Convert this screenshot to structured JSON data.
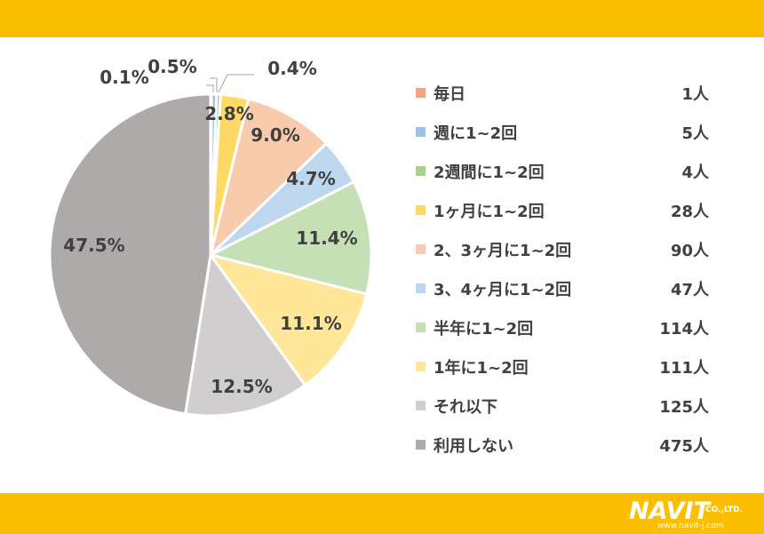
{
  "chart_data": {
    "type": "pie",
    "title": "",
    "slices": [
      {
        "label": "毎日",
        "count": "1人",
        "value": 0.1,
        "value_label": "0.1%",
        "color": "#f4a582"
      },
      {
        "label": "週に1~2回",
        "count": "5人",
        "value": 0.5,
        "value_label": "0.5%",
        "color": "#9dc3e6"
      },
      {
        "label": "2週間に1~2回",
        "count": "4人",
        "value": 0.4,
        "value_label": "0.4%",
        "color": "#a9d18e"
      },
      {
        "label": "1ヶ月に1~2回",
        "count": "28人",
        "value": 2.8,
        "value_label": "2.8%",
        "color": "#ffd966"
      },
      {
        "label": "2、3ヶ月に1~2回",
        "count": "90人",
        "value": 9.0,
        "value_label": "9.0%",
        "color": "#f8cbad"
      },
      {
        "label": "3、4ヶ月に1~2回",
        "count": "47人",
        "value": 4.7,
        "value_label": "4.7%",
        "color": "#bdd7ee"
      },
      {
        "label": "半年に1~2回",
        "count": "114人",
        "value": 11.4,
        "value_label": "11.4%",
        "color": "#c5e0b4"
      },
      {
        "label": "1年に1~2回",
        "count": "111人",
        "value": 11.1,
        "value_label": "11.1%",
        "color": "#ffe699"
      },
      {
        "label": "それ以下",
        "count": "125人",
        "value": 12.5,
        "value_label": "12.5%",
        "color": "#d0cece"
      },
      {
        "label": "利用しない",
        "count": "475人",
        "value": 47.5,
        "value_label": "47.5%",
        "color": "#aeaaaa"
      }
    ],
    "legend_position": "right"
  },
  "brand": {
    "logo_text": "NAVIT",
    "company_suffix": "CO.,LTD.",
    "url": "www.navit-j.com"
  },
  "colors": {
    "band": "#fcbf00",
    "text": "#404040"
  }
}
